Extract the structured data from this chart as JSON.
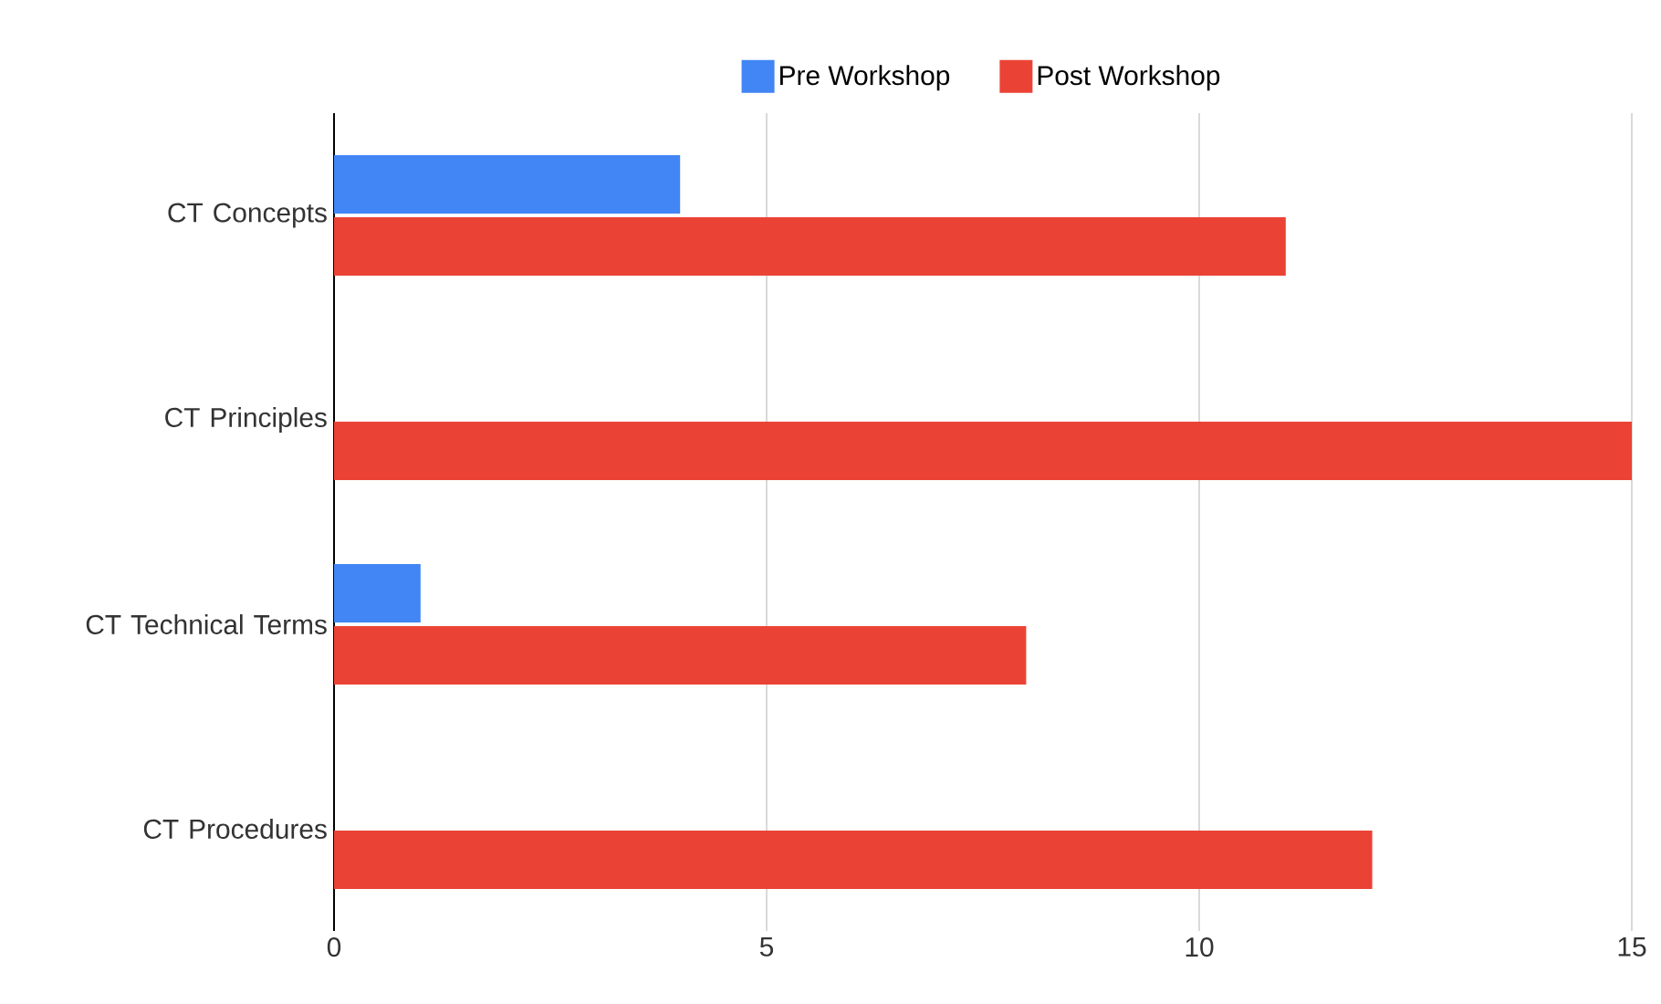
{
  "chart_data": {
    "type": "bar",
    "orientation": "horizontal",
    "categories": [
      "CT Concepts",
      "CT Principles",
      "CT Technical Terms",
      "CT Procedures"
    ],
    "series": [
      {
        "name": "Pre Workshop",
        "color": "#4285f4",
        "values": [
          4,
          0,
          1,
          0
        ]
      },
      {
        "name": "Post Workshop",
        "color": "#ea4335",
        "values": [
          11,
          15,
          8,
          12
        ]
      }
    ],
    "xlim": [
      0,
      15
    ],
    "xticks": [
      0,
      5,
      10,
      15
    ],
    "grid": "x",
    "legend": "top"
  }
}
